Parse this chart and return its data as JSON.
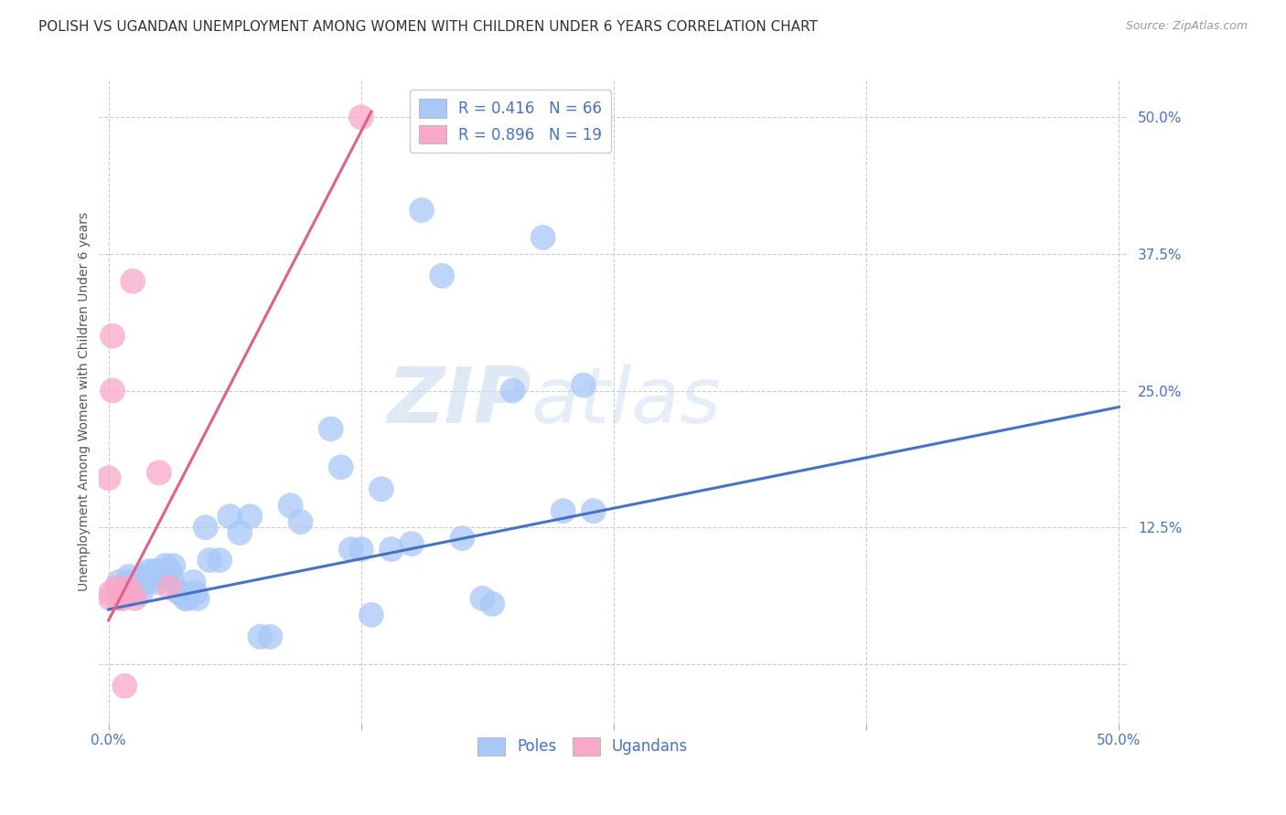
{
  "title": "POLISH VS UGANDAN UNEMPLOYMENT AMONG WOMEN WITH CHILDREN UNDER 6 YEARS CORRELATION CHART",
  "source": "Source: ZipAtlas.com",
  "ylabel": "Unemployment Among Women with Children Under 6 years",
  "xlim": [
    -0.005,
    0.505
  ],
  "ylim": [
    -0.055,
    0.535
  ],
  "ytick_right": [
    0.0,
    0.125,
    0.25,
    0.375,
    0.5
  ],
  "ytick_right_labels": [
    "",
    "12.5%",
    "25.0%",
    "37.5%",
    "50.0%"
  ],
  "poles_color": "#a8c8f8",
  "ugandans_color": "#f8a8c8",
  "poles_line_color": "#4472c4",
  "ugandans_line_color": "#e0608a",
  "legend_R_poles": "R = 0.416",
  "legend_N_poles": "N = 66",
  "legend_R_ugandans": "R = 0.896",
  "legend_N_ugandans": "N = 19",
  "watermark_zip": "ZIP",
  "watermark_atlas": "atlas",
  "poles_x": [
    0.005,
    0.007,
    0.008,
    0.009,
    0.01,
    0.01,
    0.01,
    0.01,
    0.012,
    0.013,
    0.014,
    0.015,
    0.016,
    0.016,
    0.017,
    0.018,
    0.019,
    0.02,
    0.02,
    0.021,
    0.022,
    0.023,
    0.023,
    0.024,
    0.025,
    0.026,
    0.027,
    0.028,
    0.03,
    0.031,
    0.032,
    0.035,
    0.036,
    0.038,
    0.039,
    0.042,
    0.043,
    0.044,
    0.048,
    0.05,
    0.055,
    0.06,
    0.065,
    0.07,
    0.075,
    0.08,
    0.09,
    0.095,
    0.11,
    0.115,
    0.12,
    0.125,
    0.13,
    0.135,
    0.14,
    0.15,
    0.155,
    0.165,
    0.175,
    0.185,
    0.19,
    0.2,
    0.215,
    0.225,
    0.235,
    0.24
  ],
  "poles_y": [
    0.075,
    0.065,
    0.07,
    0.065,
    0.07,
    0.075,
    0.065,
    0.08,
    0.075,
    0.07,
    0.07,
    0.075,
    0.075,
    0.065,
    0.08,
    0.08,
    0.075,
    0.08,
    0.085,
    0.08,
    0.08,
    0.085,
    0.08,
    0.075,
    0.085,
    0.08,
    0.085,
    0.09,
    0.085,
    0.08,
    0.09,
    0.065,
    0.065,
    0.06,
    0.06,
    0.075,
    0.065,
    0.06,
    0.125,
    0.095,
    0.095,
    0.135,
    0.12,
    0.135,
    0.025,
    0.025,
    0.145,
    0.13,
    0.215,
    0.18,
    0.105,
    0.105,
    0.045,
    0.16,
    0.105,
    0.11,
    0.415,
    0.355,
    0.115,
    0.06,
    0.055,
    0.25,
    0.39,
    0.14,
    0.255,
    0.14
  ],
  "ugandans_x": [
    0.0,
    0.001,
    0.001,
    0.002,
    0.002,
    0.004,
    0.005,
    0.005,
    0.006,
    0.007,
    0.008,
    0.01,
    0.01,
    0.01,
    0.012,
    0.013,
    0.025,
    0.03,
    0.125
  ],
  "ugandans_y": [
    0.17,
    0.065,
    0.06,
    0.3,
    0.25,
    0.07,
    0.065,
    0.06,
    0.065,
    0.06,
    -0.02,
    0.065,
    0.065,
    0.07,
    0.35,
    0.06,
    0.175,
    0.07,
    0.5
  ],
  "poles_trend_x": [
    0.0,
    0.5
  ],
  "poles_trend_y": [
    0.05,
    0.235
  ],
  "ugandans_trend_x": [
    0.0,
    0.13
  ],
  "ugandans_trend_y": [
    0.04,
    0.505
  ],
  "background_color": "#ffffff",
  "grid_color": "#cccccc",
  "title_fontsize": 11,
  "axis_label_fontsize": 10,
  "tick_fontsize": 11,
  "legend_fontsize": 12,
  "source_fontsize": 9
}
